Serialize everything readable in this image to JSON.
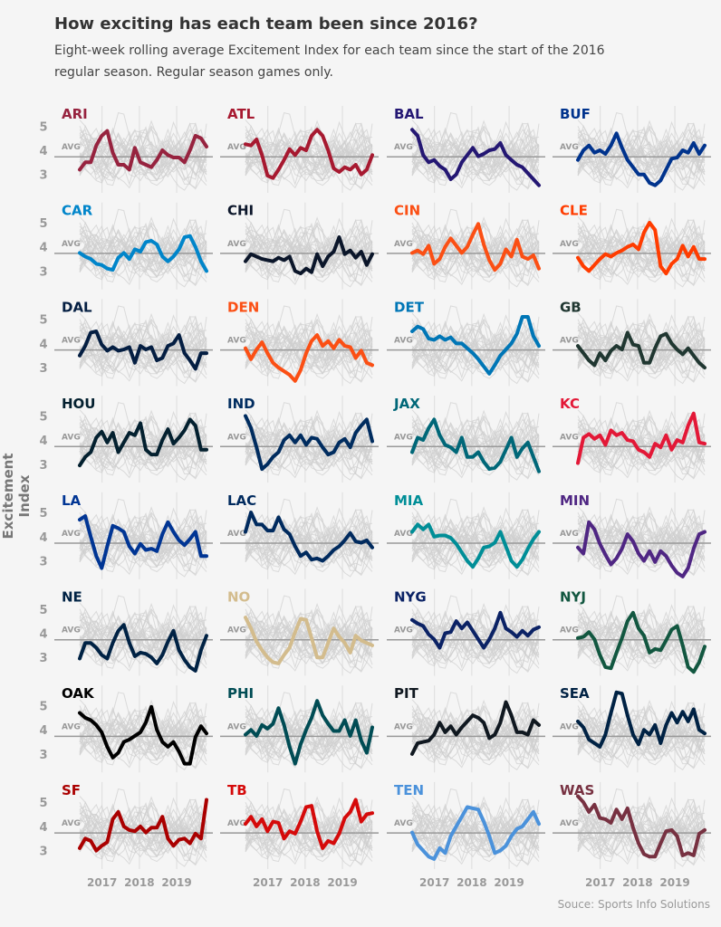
{
  "title": "How exciting has each team been since 2016?",
  "subtitle": "Eight-week rolling average Excitement Index for each team since the start of the 2016 regular season. Regular season games only.",
  "source": "Souce: Sports Info Solutions",
  "chart_data": {
    "type": "line",
    "layout": "small-multiples 4 columns x 8 rows",
    "ylabel": "Excitement Index",
    "xlabel": "",
    "y_ticks": [
      "5",
      "4",
      "3"
    ],
    "y_tick_values": [
      5,
      4,
      3
    ],
    "x_ticks": [
      "2017",
      "2018",
      "2019"
    ],
    "x_tick_values": [
      2017,
      2018,
      2019
    ],
    "x_domain": [
      2016.4,
      2019.8
    ],
    "avg_label": "AVG",
    "avg_value": 3.73,
    "background_series_color": "#cfcfcf",
    "avg_line_color": "#999999",
    "grid": "vertical year lines",
    "teams": [
      {
        "name": "ARI",
        "color": "#97233F",
        "values": [
          3.2,
          3.5,
          3.5,
          4.2,
          4.6,
          4.8,
          3.9,
          3.4,
          3.4,
          3.2,
          4.1,
          3.5,
          3.4,
          3.3,
          3.6,
          4.0,
          3.8,
          3.7,
          3.7,
          3.5,
          4.0,
          4.6,
          4.5,
          4.15
        ]
      },
      {
        "name": "ATL",
        "color": "#A71930",
        "values": [
          4.25,
          4.2,
          4.45,
          3.8,
          2.95,
          2.85,
          3.2,
          3.6,
          4.05,
          3.8,
          4.1,
          4.0,
          4.6,
          4.85,
          4.6,
          4.0,
          3.25,
          3.1,
          3.3,
          3.2,
          3.4,
          3.0,
          3.2,
          3.8
        ]
      },
      {
        "name": "BAL",
        "color": "#241773",
        "values": [
          4.85,
          4.6,
          3.8,
          3.5,
          3.6,
          3.35,
          3.2,
          2.8,
          3.0,
          3.5,
          3.8,
          4.1,
          3.75,
          3.85,
          4.0,
          4.05,
          4.3,
          3.8,
          3.6,
          3.4,
          3.3,
          3.05,
          2.8,
          2.55
        ]
      },
      {
        "name": "BUF",
        "color": "#00338D",
        "values": [
          3.6,
          4.0,
          4.2,
          3.9,
          4.0,
          3.85,
          4.2,
          4.7,
          4.1,
          3.6,
          3.3,
          3.0,
          3.0,
          2.65,
          2.55,
          2.75,
          3.2,
          3.65,
          3.7,
          4.0,
          3.9,
          4.3,
          3.85,
          4.2
        ]
      },
      {
        "name": "CAR",
        "color": "#0085CA",
        "values": [
          3.75,
          3.6,
          3.5,
          3.3,
          3.25,
          3.1,
          3.05,
          3.55,
          3.75,
          3.5,
          3.9,
          3.8,
          4.2,
          4.25,
          4.1,
          3.6,
          3.4,
          3.6,
          3.9,
          4.4,
          4.45,
          4.0,
          3.4,
          3.0
        ]
      },
      {
        "name": "CHI",
        "color": "#0B162A",
        "values": [
          3.4,
          3.7,
          3.6,
          3.5,
          3.45,
          3.4,
          3.55,
          3.45,
          3.6,
          3.0,
          2.9,
          3.1,
          2.95,
          3.7,
          3.2,
          3.6,
          3.8,
          4.4,
          3.7,
          3.85,
          3.55,
          3.8,
          3.25,
          3.7
        ]
      },
      {
        "name": "CIN",
        "color": "#FB4F14",
        "values": [
          3.75,
          3.85,
          3.7,
          4.05,
          3.3,
          3.5,
          4.0,
          4.35,
          4.05,
          3.75,
          4.0,
          4.5,
          4.95,
          4.1,
          3.45,
          3.05,
          3.3,
          3.9,
          3.6,
          4.3,
          3.6,
          3.5,
          3.65,
          3.1
        ]
      },
      {
        "name": "CLE",
        "color": "#FF3C00",
        "values": [
          3.55,
          3.2,
          3.0,
          3.25,
          3.5,
          3.7,
          3.6,
          3.75,
          3.85,
          4.0,
          4.1,
          3.9,
          4.6,
          5.0,
          4.7,
          3.2,
          2.9,
          3.3,
          3.5,
          4.05,
          3.6,
          4.0,
          3.5,
          3.5
        ]
      },
      {
        "name": "DAL",
        "color": "#041E42",
        "values": [
          3.5,
          3.9,
          4.45,
          4.5,
          3.95,
          3.7,
          3.85,
          3.7,
          3.75,
          3.85,
          3.2,
          3.9,
          3.75,
          3.85,
          3.3,
          3.4,
          3.9,
          4.0,
          4.35,
          3.6,
          3.3,
          2.95,
          3.6,
          3.6
        ]
      },
      {
        "name": "DEN",
        "color": "#FB4F14",
        "values": [
          3.8,
          3.35,
          3.75,
          4.05,
          3.6,
          3.2,
          3.0,
          2.85,
          2.7,
          2.45,
          2.9,
          3.6,
          4.1,
          4.35,
          3.9,
          4.1,
          3.8,
          4.15,
          3.9,
          3.85,
          3.4,
          3.7,
          3.2,
          3.1
        ]
      },
      {
        "name": "DET",
        "color": "#0076B6",
        "values": [
          4.5,
          4.7,
          4.6,
          4.2,
          4.15,
          4.3,
          4.15,
          4.25,
          4.0,
          4.0,
          3.8,
          3.6,
          3.35,
          3.05,
          2.75,
          3.1,
          3.5,
          3.75,
          4.0,
          4.4,
          5.1,
          5.1,
          4.3,
          3.9
        ]
      },
      {
        "name": "GB",
        "color": "#203731",
        "values": [
          3.9,
          3.6,
          3.3,
          3.1,
          3.6,
          3.3,
          3.7,
          3.9,
          3.75,
          4.45,
          3.95,
          3.9,
          3.2,
          3.2,
          3.8,
          4.3,
          4.4,
          4.0,
          3.75,
          3.55,
          3.8,
          3.5,
          3.2,
          3.0
        ]
      },
      {
        "name": "HOU",
        "color": "#03202F",
        "values": [
          2.95,
          3.3,
          3.5,
          4.1,
          4.35,
          3.9,
          4.3,
          3.5,
          3.9,
          4.3,
          4.2,
          4.7,
          3.6,
          3.4,
          3.4,
          4.0,
          4.45,
          3.85,
          4.1,
          4.4,
          4.85,
          4.6,
          3.6,
          3.6
        ]
      },
      {
        "name": "IND",
        "color": "#002C5F",
        "values": [
          5.0,
          4.5,
          3.7,
          2.8,
          3.0,
          3.3,
          3.5,
          4.0,
          4.2,
          3.9,
          4.2,
          3.8,
          4.1,
          4.05,
          3.7,
          3.4,
          3.5,
          3.9,
          4.05,
          3.7,
          4.3,
          4.6,
          4.85,
          3.95
        ]
      },
      {
        "name": "JAX",
        "color": "#006778",
        "values": [
          3.5,
          4.1,
          4.0,
          4.5,
          4.85,
          4.2,
          3.8,
          3.7,
          3.5,
          4.1,
          3.3,
          3.3,
          3.5,
          3.1,
          2.8,
          2.85,
          3.1,
          3.6,
          4.1,
          3.3,
          3.65,
          3.9,
          3.3,
          2.7
        ]
      },
      {
        "name": "KC",
        "color": "#E31837",
        "values": [
          3.05,
          4.1,
          4.25,
          4.05,
          4.2,
          3.8,
          4.4,
          4.2,
          4.3,
          4.0,
          3.95,
          3.6,
          3.5,
          3.3,
          3.85,
          3.7,
          4.2,
          3.6,
          4.0,
          3.9,
          4.6,
          5.1,
          3.9,
          3.85
        ]
      },
      {
        "name": "LA",
        "color": "#003594",
        "values": [
          4.7,
          4.85,
          4.0,
          3.2,
          2.7,
          3.6,
          4.45,
          4.35,
          4.2,
          3.6,
          3.3,
          3.7,
          3.45,
          3.5,
          3.4,
          4.1,
          4.6,
          4.2,
          3.85,
          3.65,
          3.9,
          4.2,
          3.2,
          3.2
        ]
      },
      {
        "name": "LAC",
        "color": "#002A5E",
        "values": [
          4.2,
          5.0,
          4.5,
          4.5,
          4.25,
          4.25,
          4.8,
          4.3,
          4.1,
          3.6,
          3.2,
          3.35,
          3.05,
          3.1,
          3.0,
          3.2,
          3.45,
          3.6,
          3.85,
          4.15,
          3.8,
          3.75,
          3.85,
          3.55
        ]
      },
      {
        "name": "MIA",
        "color": "#008E97",
        "values": [
          4.2,
          4.5,
          4.3,
          4.5,
          4.0,
          4.05,
          4.05,
          3.95,
          3.7,
          3.35,
          3.0,
          2.75,
          3.1,
          3.55,
          3.6,
          3.75,
          4.2,
          3.6,
          3.0,
          2.75,
          3.05,
          3.5,
          3.9,
          4.2
        ]
      },
      {
        "name": "MIN",
        "color": "#4F2683",
        "values": [
          3.55,
          3.3,
          4.6,
          4.3,
          3.7,
          3.25,
          2.85,
          3.1,
          3.5,
          4.1,
          3.8,
          3.3,
          3.0,
          3.4,
          2.95,
          3.4,
          3.2,
          2.8,
          2.5,
          2.35,
          2.7,
          3.5,
          4.1,
          4.2
        ]
      },
      {
        "name": "NE",
        "color": "#002244",
        "values": [
          2.95,
          3.6,
          3.6,
          3.4,
          3.1,
          2.95,
          3.6,
          4.1,
          4.35,
          3.6,
          3.05,
          3.2,
          3.15,
          3.0,
          2.75,
          3.1,
          3.65,
          4.1,
          3.3,
          2.9,
          2.6,
          2.45,
          3.3,
          3.9
        ]
      },
      {
        "name": "NO",
        "color": "#D3BC8D",
        "values": [
          4.65,
          4.2,
          3.65,
          3.3,
          3.0,
          2.8,
          2.75,
          3.1,
          3.4,
          4.05,
          4.6,
          4.55,
          3.8,
          3.0,
          3.0,
          3.6,
          4.2,
          3.85,
          3.6,
          3.2,
          3.9,
          3.7,
          3.6,
          3.5
        ]
      },
      {
        "name": "NYG",
        "color": "#0B2265",
        "values": [
          4.55,
          4.4,
          4.3,
          3.95,
          3.75,
          3.4,
          4.0,
          4.05,
          4.5,
          4.2,
          4.45,
          4.1,
          3.75,
          3.4,
          3.75,
          4.2,
          4.85,
          4.2,
          4.05,
          3.85,
          4.1,
          3.9,
          4.15,
          4.25
        ]
      },
      {
        "name": "NYJ",
        "color": "#125740",
        "values": [
          3.8,
          3.85,
          4.05,
          3.75,
          3.1,
          2.6,
          2.55,
          3.2,
          3.8,
          4.5,
          4.85,
          4.2,
          3.9,
          3.2,
          3.35,
          3.3,
          3.7,
          4.15,
          4.3,
          3.5,
          2.6,
          2.4,
          2.8,
          3.45
        ]
      },
      {
        "name": "OAK",
        "color": "#000000",
        "values": [
          4.7,
          4.5,
          4.4,
          4.2,
          3.9,
          3.3,
          2.85,
          3.05,
          3.5,
          3.6,
          3.75,
          3.9,
          4.3,
          4.95,
          4.0,
          3.5,
          3.3,
          3.5,
          3.1,
          2.6,
          2.6,
          3.7,
          4.15,
          3.85
        ]
      },
      {
        "name": "PHI",
        "color": "#004C54",
        "values": [
          3.8,
          4.0,
          3.75,
          4.2,
          4.05,
          4.25,
          4.9,
          4.2,
          3.3,
          2.6,
          3.4,
          4.0,
          4.5,
          5.2,
          4.6,
          4.25,
          3.95,
          3.95,
          4.4,
          3.75,
          4.4,
          3.55,
          3.05,
          4.1
        ]
      },
      {
        "name": "PIT",
        "color": "#101820",
        "values": [
          3.0,
          3.45,
          3.5,
          3.55,
          3.8,
          4.3,
          3.9,
          4.15,
          3.8,
          4.1,
          4.35,
          4.6,
          4.5,
          4.3,
          3.65,
          3.8,
          4.3,
          5.15,
          4.6,
          3.9,
          3.9,
          3.8,
          4.4,
          4.2
        ]
      },
      {
        "name": "SEA",
        "color": "#002244",
        "values": [
          4.35,
          4.1,
          3.6,
          3.45,
          3.3,
          3.8,
          4.7,
          5.55,
          5.5,
          4.6,
          3.8,
          3.4,
          4.0,
          3.8,
          4.2,
          3.45,
          4.2,
          4.7,
          4.3,
          4.75,
          4.35,
          4.85,
          4.0,
          3.85
        ]
      },
      {
        "name": "SF",
        "color": "#AA0000",
        "values": [
          3.1,
          3.5,
          3.4,
          3.0,
          3.2,
          3.35,
          4.3,
          4.6,
          4.0,
          3.85,
          3.8,
          4.0,
          3.75,
          3.95,
          3.95,
          4.4,
          3.5,
          3.2,
          3.45,
          3.5,
          3.3,
          3.7,
          3.5,
          5.1
        ]
      },
      {
        "name": "TB",
        "color": "#D50A0A",
        "values": [
          4.1,
          4.4,
          4.0,
          4.3,
          3.8,
          4.2,
          4.15,
          3.5,
          3.8,
          3.7,
          4.2,
          4.8,
          4.85,
          3.8,
          3.1,
          3.4,
          3.3,
          3.7,
          4.35,
          4.6,
          5.1,
          4.2,
          4.5,
          4.55
        ]
      },
      {
        "name": "TEN",
        "color": "#4B92DB",
        "values": [
          3.75,
          3.25,
          3.0,
          2.75,
          2.65,
          3.1,
          2.9,
          3.6,
          4.0,
          4.4,
          4.8,
          4.75,
          4.7,
          4.2,
          3.6,
          2.9,
          3.0,
          3.2,
          3.6,
          3.9,
          4.0,
          4.3,
          4.6,
          4.1
        ]
      },
      {
        "name": "WAS",
        "color": "#773141",
        "values": [
          5.25,
          5.0,
          4.6,
          4.9,
          4.35,
          4.3,
          4.15,
          4.7,
          4.3,
          4.75,
          3.95,
          3.3,
          2.85,
          2.75,
          2.75,
          3.3,
          3.8,
          3.85,
          3.6,
          2.8,
          2.9,
          2.8,
          3.7,
          3.85
        ]
      }
    ]
  }
}
